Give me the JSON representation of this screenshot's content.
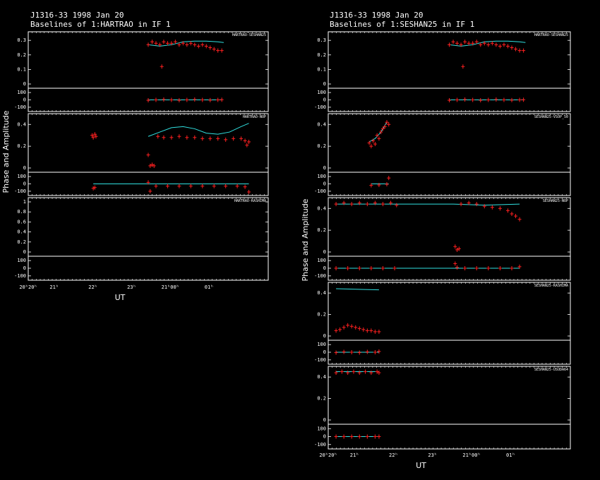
{
  "colors": {
    "background": "#000000",
    "frame": "#ffffff",
    "data": "#ff2020",
    "model": "#30e0e0",
    "outlier": "#20ff80"
  },
  "chart_data": [
    {
      "type": "scatter",
      "title_line1": "J1316-33  1998 Jan 20",
      "title_line2": "Baselines of 1:HARTRAO in IF 1",
      "ylabel": "Phase and Amplitude",
      "xlabel": "UT",
      "xticks": [
        "20ʰ20ʰ",
        "21ʰ",
        "22ʰ",
        "23ʰ",
        "21ʰ00ʰ",
        "01ʰ"
      ],
      "panels": [
        {
          "label": "HARTRAO-SESHAN25",
          "amp_ticks": [
            "0.3",
            "0.2",
            "0.1",
            "0"
          ],
          "amp_range": [
            0,
            0.33
          ],
          "amp": [
            [
              3.1,
              0.27
            ],
            [
              3.2,
              0.29
            ],
            [
              3.3,
              0.28
            ],
            [
              3.4,
              0.27
            ],
            [
              3.45,
              0.12
            ],
            [
              3.5,
              0.29
            ],
            [
              3.6,
              0.28
            ],
            [
              3.7,
              0.28
            ],
            [
              3.8,
              0.29
            ],
            [
              3.9,
              0.27
            ],
            [
              4.0,
              0.28
            ],
            [
              4.1,
              0.27
            ],
            [
              4.2,
              0.28
            ],
            [
              4.3,
              0.27
            ],
            [
              4.4,
              0.26
            ],
            [
              4.5,
              0.27
            ],
            [
              4.6,
              0.26
            ],
            [
              4.7,
              0.25
            ],
            [
              4.8,
              0.24
            ],
            [
              4.9,
              0.23
            ],
            [
              5.0,
              0.23
            ]
          ],
          "model": [
            [
              3.1,
              0.27
            ],
            [
              3.4,
              0.26
            ],
            [
              3.7,
              0.27
            ],
            [
              4.0,
              0.29
            ],
            [
              4.3,
              0.295
            ],
            [
              4.6,
              0.295
            ],
            [
              4.9,
              0.29
            ],
            [
              5.05,
              0.285
            ]
          ],
          "phase_ticks": [
            "100",
            "0",
            "-100"
          ],
          "phase": [
            [
              3.1,
              -5
            ],
            [
              3.3,
              0
            ],
            [
              3.5,
              5
            ],
            [
              3.7,
              0
            ],
            [
              3.9,
              -5
            ],
            [
              4.1,
              0
            ],
            [
              4.3,
              5
            ],
            [
              4.5,
              0
            ],
            [
              4.7,
              -3
            ],
            [
              4.9,
              0
            ],
            [
              5.0,
              2
            ]
          ]
        },
        {
          "label": "HARTRAO-NOP",
          "amp_ticks": [
            "0.4",
            "0.2",
            "0"
          ],
          "amp_range": [
            0,
            0.46
          ],
          "amp": [
            [
              1.65,
              0.3
            ],
            [
              1.68,
              0.28
            ],
            [
              1.72,
              0.31
            ],
            [
              1.75,
              0.29
            ],
            [
              3.1,
              0.12
            ],
            [
              3.15,
              0.02
            ],
            [
              3.2,
              0.03
            ],
            [
              3.25,
              0.02
            ],
            [
              3.35,
              0.29
            ],
            [
              3.5,
              0.28
            ],
            [
              3.7,
              0.28
            ],
            [
              3.9,
              0.29
            ],
            [
              4.1,
              0.28
            ],
            [
              4.3,
              0.28
            ],
            [
              4.5,
              0.27
            ],
            [
              4.7,
              0.27
            ],
            [
              4.9,
              0.27
            ],
            [
              5.1,
              0.26
            ],
            [
              5.3,
              0.27
            ],
            [
              5.5,
              0.27
            ],
            [
              5.6,
              0.25
            ],
            [
              5.65,
              0.21
            ],
            [
              5.7,
              0.24
            ]
          ],
          "model": [
            [
              3.1,
              0.29
            ],
            [
              3.4,
              0.33
            ],
            [
              3.7,
              0.37
            ],
            [
              4.0,
              0.38
            ],
            [
              4.3,
              0.36
            ],
            [
              4.6,
              0.32
            ],
            [
              4.9,
              0.31
            ],
            [
              5.2,
              0.33
            ],
            [
              5.5,
              0.38
            ],
            [
              5.7,
              0.41
            ]
          ],
          "phase_ticks": [
            "100",
            "0",
            "-100"
          ],
          "phase": [
            [
              1.68,
              -60
            ],
            [
              1.72,
              -50
            ],
            [
              3.1,
              20
            ],
            [
              3.15,
              -100
            ],
            [
              3.3,
              -30
            ],
            [
              3.6,
              -30
            ],
            [
              3.9,
              -30
            ],
            [
              4.2,
              -30
            ],
            [
              4.5,
              -30
            ],
            [
              4.8,
              -30
            ],
            [
              5.1,
              -30
            ],
            [
              5.4,
              -30
            ],
            [
              5.6,
              -40
            ],
            [
              5.7,
              -110
            ]
          ]
        },
        {
          "label": "HARTRAO-KASHIMA",
          "amp_ticks": [
            "1",
            "0.8",
            "0.6",
            "0.4",
            "0.2",
            "0"
          ],
          "amp_range": [
            0,
            1.0
          ],
          "amp": [],
          "model": [],
          "phase_ticks": [
            "100",
            "0",
            "-100"
          ],
          "phase": []
        }
      ]
    },
    {
      "type": "scatter",
      "title_line1": "J1316-33  1998 Jan 20",
      "title_line2": "Baselines of 1:SESHAN25 in IF 1",
      "ylabel": "Phase and Amplitude",
      "xlabel": "UT",
      "xticks": [
        "20ʰ20ʰ",
        "21ʰ",
        "22ʰ",
        "23ʰ",
        "21ʰ00ʰ",
        "01ʰ"
      ],
      "panels": [
        {
          "label": "HARTRAO-SESHAN25",
          "amp_ticks": [
            "0.3",
            "0.2",
            "0.1",
            "0"
          ],
          "amp_range": [
            0,
            0.33
          ],
          "amp": [
            [
              3.1,
              0.27
            ],
            [
              3.2,
              0.29
            ],
            [
              3.3,
              0.28
            ],
            [
              3.4,
              0.27
            ],
            [
              3.45,
              0.12
            ],
            [
              3.5,
              0.29
            ],
            [
              3.6,
              0.28
            ],
            [
              3.7,
              0.28
            ],
            [
              3.8,
              0.29
            ],
            [
              3.9,
              0.27
            ],
            [
              4.0,
              0.28
            ],
            [
              4.1,
              0.27
            ],
            [
              4.2,
              0.28
            ],
            [
              4.3,
              0.27
            ],
            [
              4.4,
              0.26
            ],
            [
              4.5,
              0.27
            ],
            [
              4.6,
              0.26
            ],
            [
              4.7,
              0.25
            ],
            [
              4.8,
              0.24
            ],
            [
              4.9,
              0.23
            ],
            [
              5.0,
              0.23
            ]
          ],
          "model": [
            [
              3.1,
              0.27
            ],
            [
              3.4,
              0.26
            ],
            [
              3.7,
              0.27
            ],
            [
              4.0,
              0.29
            ],
            [
              4.3,
              0.295
            ],
            [
              4.6,
              0.295
            ],
            [
              4.9,
              0.29
            ],
            [
              5.05,
              0.285
            ]
          ],
          "phase_ticks": [
            "100",
            "0",
            "-100"
          ],
          "phase": [
            [
              3.1,
              -5
            ],
            [
              3.3,
              0
            ],
            [
              3.5,
              5
            ],
            [
              3.7,
              0
            ],
            [
              3.9,
              -5
            ],
            [
              4.1,
              0
            ],
            [
              4.3,
              5
            ],
            [
              4.5,
              0
            ],
            [
              4.7,
              -3
            ],
            [
              4.9,
              0
            ],
            [
              5.0,
              2
            ]
          ]
        },
        {
          "label": "SESHAN25-VSOP_50",
          "amp_ticks": [
            "0.4",
            "0.2",
            "0"
          ],
          "amp_range": [
            0,
            0.46
          ],
          "amp": [
            [
              1.05,
              0.23
            ],
            [
              1.1,
              0.2
            ],
            [
              1.15,
              0.25
            ],
            [
              1.2,
              0.22
            ],
            [
              1.25,
              0.3
            ],
            [
              1.3,
              0.27
            ],
            [
              1.35,
              0.33
            ],
            [
              1.4,
              0.36
            ],
            [
              1.45,
              0.38
            ],
            [
              1.5,
              0.42
            ],
            [
              1.55,
              0.4
            ]
          ],
          "model": [
            [
              1.05,
              0.24
            ],
            [
              1.2,
              0.27
            ],
            [
              1.35,
              0.33
            ],
            [
              1.5,
              0.42
            ]
          ],
          "phase_ticks": [
            "100",
            "0",
            "-100"
          ],
          "phase": [
            [
              1.1,
              -20
            ],
            [
              1.3,
              -15
            ],
            [
              1.5,
              -5
            ],
            [
              1.55,
              80
            ]
          ]
        },
        {
          "label": "SESHAN25-NOP",
          "amp_ticks": [
            "0.4",
            "0.2",
            "0"
          ],
          "amp_range": [
            0,
            0.46
          ],
          "amp": [
            [
              0.2,
              0.44
            ],
            [
              0.4,
              0.45
            ],
            [
              0.6,
              0.44
            ],
            [
              0.8,
              0.45
            ],
            [
              1.0,
              0.44
            ],
            [
              1.2,
              0.45
            ],
            [
              1.4,
              0.44
            ],
            [
              1.6,
              0.45
            ],
            [
              1.75,
              0.43
            ],
            [
              3.25,
              0.05
            ],
            [
              3.3,
              0.02
            ],
            [
              3.35,
              0.03
            ],
            [
              3.4,
              0.44
            ],
            [
              3.6,
              0.45
            ],
            [
              3.8,
              0.44
            ],
            [
              4.0,
              0.42
            ],
            [
              4.2,
              0.41
            ],
            [
              4.4,
              0.4
            ],
            [
              4.6,
              0.38
            ],
            [
              4.7,
              0.35
            ],
            [
              4.8,
              0.33
            ],
            [
              4.9,
              0.3
            ]
          ],
          "model": [
            [
              0.2,
              0.44
            ],
            [
              1.0,
              0.44
            ],
            [
              1.8,
              0.44
            ],
            [
              3.2,
              0.44
            ],
            [
              4.0,
              0.43
            ],
            [
              4.9,
              0.44
            ]
          ],
          "phase_ticks": [
            "100",
            "0",
            "-100"
          ],
          "phase": [
            [
              0.2,
              0
            ],
            [
              0.5,
              0
            ],
            [
              0.8,
              0
            ],
            [
              1.1,
              0
            ],
            [
              1.4,
              0
            ],
            [
              1.7,
              0
            ],
            [
              3.25,
              60
            ],
            [
              3.3,
              10
            ],
            [
              3.5,
              0
            ],
            [
              3.8,
              0
            ],
            [
              4.1,
              0
            ],
            [
              4.4,
              0
            ],
            [
              4.7,
              0
            ],
            [
              4.9,
              20
            ]
          ]
        },
        {
          "label": "SESHAN25-KASHIMA",
          "amp_ticks": [
            "0.4",
            "0.2",
            "0"
          ],
          "amp_range": [
            0,
            0.46
          ],
          "amp": [
            [
              0.2,
              0.05
            ],
            [
              0.3,
              0.06
            ],
            [
              0.4,
              0.08
            ],
            [
              0.5,
              0.1
            ],
            [
              0.6,
              0.09
            ],
            [
              0.7,
              0.08
            ],
            [
              0.8,
              0.07
            ],
            [
              0.9,
              0.06
            ],
            [
              1.0,
              0.05
            ],
            [
              1.1,
              0.05
            ],
            [
              1.2,
              0.04
            ],
            [
              1.3,
              0.04
            ]
          ],
          "model": [
            [
              0.2,
              0.44
            ],
            [
              1.3,
              0.43
            ]
          ],
          "phase_ticks": [
            "100",
            "0",
            "-100"
          ],
          "phase": [
            [
              0.2,
              -5
            ],
            [
              0.4,
              5
            ],
            [
              0.6,
              0
            ],
            [
              0.8,
              -5
            ],
            [
              1.0,
              5
            ],
            [
              1.2,
              0
            ],
            [
              1.3,
              10
            ]
          ]
        },
        {
          "label": "SESHAN25-USUDA64",
          "amp_ticks": [
            "0.4",
            "0.2",
            "0"
          ],
          "amp_range": [
            0,
            0.46
          ],
          "amp": [
            [
              0.2,
              0.44
            ],
            [
              0.35,
              0.45
            ],
            [
              0.5,
              0.44
            ],
            [
              0.65,
              0.45
            ],
            [
              0.8,
              0.44
            ],
            [
              0.95,
              0.45
            ],
            [
              1.1,
              0.44
            ],
            [
              1.25,
              0.45
            ],
            [
              1.3,
              0.44
            ]
          ],
          "model": [
            [
              0.2,
              0.45
            ],
            [
              1.3,
              0.45
            ]
          ],
          "phase_ticks": [
            "100",
            "0",
            "-100"
          ],
          "phase": [
            [
              0.2,
              0
            ],
            [
              0.4,
              0
            ],
            [
              0.6,
              0
            ],
            [
              0.8,
              0
            ],
            [
              1.0,
              0
            ],
            [
              1.2,
              0
            ],
            [
              1.3,
              0
            ]
          ]
        }
      ]
    }
  ]
}
